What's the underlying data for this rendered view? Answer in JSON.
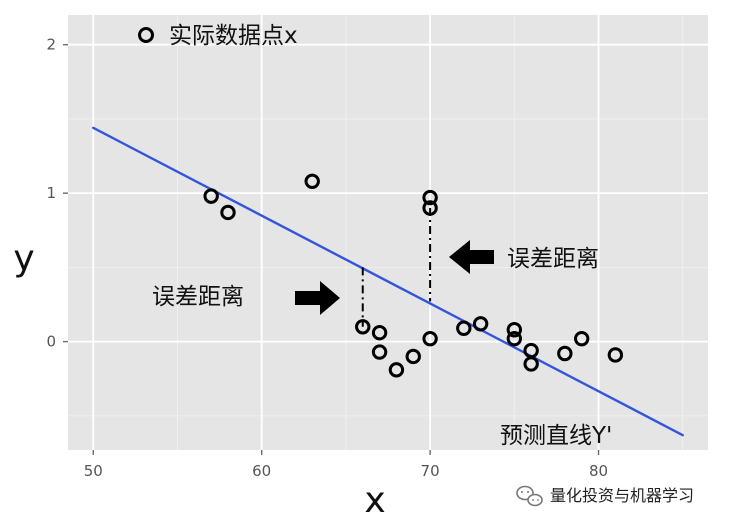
{
  "chart_data": {
    "type": "scatter",
    "xlabel": "x",
    "ylabel": "y",
    "xlim": [
      48.5,
      86.5
    ],
    "ylim": [
      -0.73,
      2.2
    ],
    "grid": true,
    "x_ticks": [
      {
        "value": 50,
        "label": "50"
      },
      {
        "value": 60,
        "label": "60"
      },
      {
        "value": 70,
        "label": "70"
      },
      {
        "value": 80,
        "label": "80"
      }
    ],
    "y_ticks": [
      {
        "value": 0,
        "label": "0"
      },
      {
        "value": 1,
        "label": "1"
      },
      {
        "value": 2,
        "label": "2"
      }
    ],
    "series": [
      {
        "name": "实际数据点x",
        "type": "scatter",
        "color": "#000000",
        "points": [
          {
            "x": 57,
            "y": 0.98
          },
          {
            "x": 58,
            "y": 0.87
          },
          {
            "x": 63,
            "y": 1.08
          },
          {
            "x": 66,
            "y": 0.1
          },
          {
            "x": 67,
            "y": 0.06
          },
          {
            "x": 67,
            "y": -0.07
          },
          {
            "x": 68,
            "y": -0.19
          },
          {
            "x": 69,
            "y": -0.1
          },
          {
            "x": 70,
            "y": 0.97
          },
          {
            "x": 70,
            "y": 0.9
          },
          {
            "x": 70,
            "y": 0.02
          },
          {
            "x": 72,
            "y": 0.09
          },
          {
            "x": 73,
            "y": 0.12
          },
          {
            "x": 75,
            "y": 0.08
          },
          {
            "x": 75,
            "y": 0.02
          },
          {
            "x": 76,
            "y": -0.06
          },
          {
            "x": 76,
            "y": -0.15
          },
          {
            "x": 78,
            "y": -0.08
          },
          {
            "x": 79,
            "y": 0.02
          },
          {
            "x": 81,
            "y": -0.09
          }
        ]
      },
      {
        "name": "预测直线Y'",
        "type": "line",
        "color": "#3355dd",
        "points": [
          {
            "x": 50,
            "y": 1.44
          },
          {
            "x": 85,
            "y": -0.63
          }
        ]
      }
    ],
    "legend": {
      "label": "实际数据点x",
      "position": "top-left"
    },
    "annotations": [
      {
        "label": "误差距离",
        "side": "left",
        "segment": {
          "x": 66,
          "y1": 0.5,
          "y2": 0.1
        }
      },
      {
        "label": "误差距离",
        "side": "right",
        "segment": {
          "x": 70,
          "y1": 0.9,
          "y2": 0.27
        }
      },
      {
        "label": "预测直线Y'",
        "position": "bottom-right"
      }
    ]
  },
  "watermark": {
    "text": "量化投资与机器学习",
    "icon": "wechat-icon"
  }
}
